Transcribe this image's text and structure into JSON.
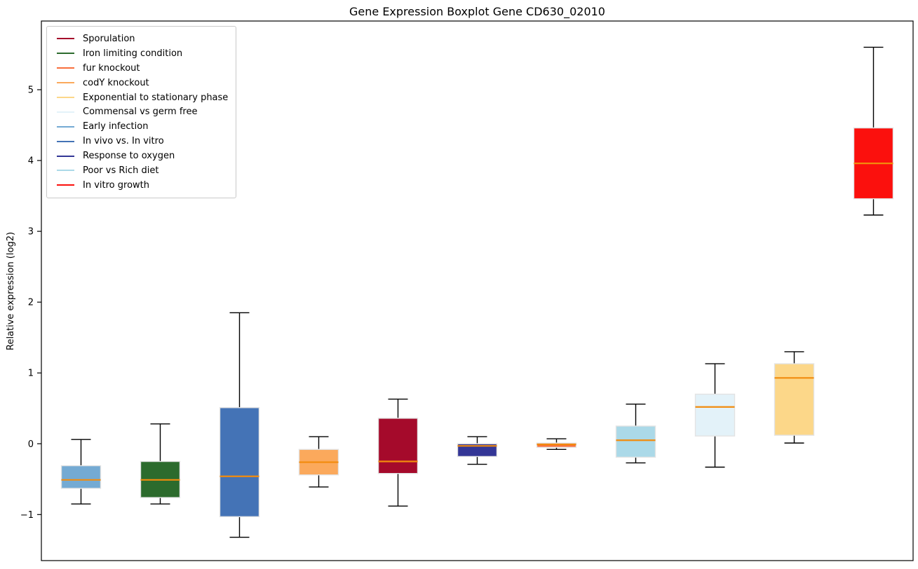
{
  "chart_data": {
    "type": "boxplot",
    "title": "Gene Expression Boxplot Gene CD630_02010",
    "ylabel": "Relative expression (log2)",
    "xlabel": "",
    "ylim": [
      -1.65,
      5.97
    ],
    "yticks": [
      -1,
      0,
      1,
      2,
      3,
      4,
      5
    ],
    "grid": false,
    "legend_position": "upper left",
    "median_color": "#F28B0D",
    "whisker_color": "#000000",
    "palette": {
      "Sporulation": "#A50A2B",
      "Iron limiting condition": "#2C6B2D",
      "fur knockout": "#F86F3C",
      "codY knockout": "#FBA95C",
      "Exponential to stationary phase": "#FCD789",
      "Commensal vs germ free": "#E3F2F9",
      "Early infection": "#74AAD3",
      "In vivo vs. In vitro": "#4473B6",
      "Response to oxygen": "#333696",
      "Poor vs Rich diet": "#ABD9E8",
      "In vitro growth": "#FB100D"
    },
    "legend_order": [
      "Sporulation",
      "Iron limiting condition",
      "fur knockout",
      "codY knockout",
      "Exponential to stationary phase",
      "Commensal vs germ free",
      "Early infection",
      "In vivo vs. In vitro",
      "Response to oxygen",
      "Poor vs Rich diet",
      "In vitro growth"
    ],
    "groups": [
      {
        "name": "Early infection",
        "whisker_low": -0.85,
        "q1": -0.63,
        "median": -0.51,
        "q3": -0.31,
        "whisker_high": 0.06
      },
      {
        "name": "Iron limiting condition",
        "whisker_low": -0.85,
        "q1": -0.76,
        "median": -0.51,
        "q3": -0.25,
        "whisker_high": 0.28
      },
      {
        "name": "In vivo vs. In vitro",
        "whisker_low": -1.32,
        "q1": -1.03,
        "median": -0.46,
        "q3": 0.51,
        "whisker_high": 1.85
      },
      {
        "name": "codY knockout",
        "whisker_low": -0.61,
        "q1": -0.44,
        "median": -0.26,
        "q3": -0.08,
        "whisker_high": 0.1
      },
      {
        "name": "Sporulation",
        "whisker_low": -0.88,
        "q1": -0.42,
        "median": -0.25,
        "q3": 0.36,
        "whisker_high": 0.63
      },
      {
        "name": "Response to oxygen",
        "whisker_low": -0.29,
        "q1": -0.18,
        "median": -0.03,
        "q3": 0.0,
        "whisker_high": 0.1
      },
      {
        "name": "fur knockout",
        "whisker_low": -0.08,
        "q1": -0.05,
        "median": -0.01,
        "q3": 0.01,
        "whisker_high": 0.07
      },
      {
        "name": "Poor vs Rich diet",
        "whisker_low": -0.27,
        "q1": -0.19,
        "median": 0.05,
        "q3": 0.25,
        "whisker_high": 0.56
      },
      {
        "name": "Commensal vs germ free",
        "whisker_low": -0.33,
        "q1": 0.11,
        "median": 0.52,
        "q3": 0.7,
        "whisker_high": 1.13
      },
      {
        "name": "Exponential to stationary phase",
        "whisker_low": 0.01,
        "q1": 0.12,
        "median": 0.93,
        "q3": 1.13,
        "whisker_high": 1.3
      },
      {
        "name": "In vitro growth",
        "whisker_low": 3.23,
        "q1": 3.46,
        "median": 3.96,
        "q3": 4.46,
        "whisker_high": 5.6
      }
    ]
  }
}
